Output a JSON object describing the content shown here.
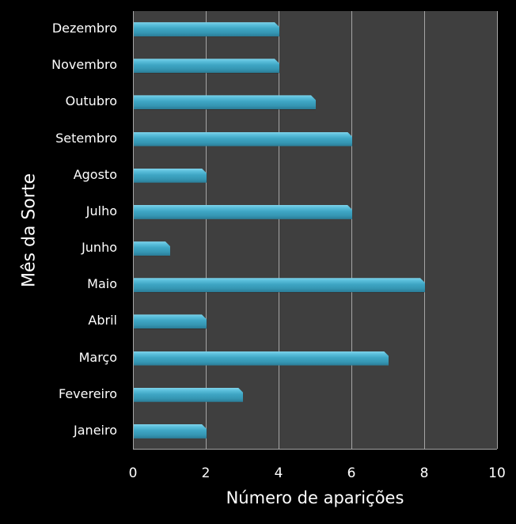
{
  "chart_data": {
    "type": "bar",
    "orientation": "horizontal",
    "title": "",
    "xlabel": "Número de aparições",
    "ylabel": "Mês da Sorte",
    "xlim": [
      0,
      10
    ],
    "xticks": [
      "0",
      "2",
      "4",
      "6",
      "8",
      "10"
    ],
    "grid": true,
    "legend": null,
    "categories": [
      "Janeiro",
      "Fevereiro",
      "Março",
      "Abril",
      "Maio",
      "Junho",
      "Julho",
      "Agosto",
      "Setembro",
      "Outubro",
      "Novembro",
      "Dezembro"
    ],
    "values": [
      2,
      3,
      7,
      2,
      8,
      1,
      6,
      2,
      6,
      5,
      4,
      4
    ],
    "colors": {
      "bar": "#3fa6c4",
      "plot_background": "#3f3f3f",
      "background": "#000000",
      "gridline": "#a6a6a6",
      "text": "#ffffff"
    }
  }
}
